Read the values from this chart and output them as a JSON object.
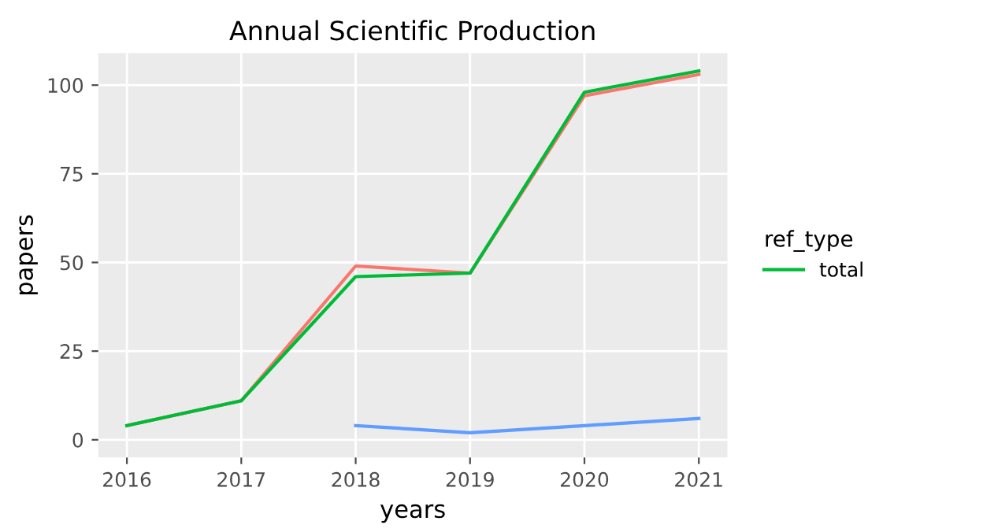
{
  "chart_data": {
    "type": "line",
    "title": "Annual Scientific Production",
    "xlabel": "years",
    "ylabel": "papers",
    "legend_title": "ref_type",
    "series": [
      {
        "color": "#f8766d",
        "x": [
          2016,
          2017,
          2018,
          2019,
          2020,
          2021
        ],
        "values": [
          4,
          11,
          49,
          47,
          97,
          103
        ]
      },
      {
        "name": "total",
        "color": "#00ba38",
        "x": [
          2016,
          2017,
          2018,
          2019,
          2020,
          2021
        ],
        "values": [
          4,
          11,
          46,
          47,
          98,
          104
        ]
      },
      {
        "color": "#619cff",
        "x": [
          2018,
          2019,
          2020,
          2021
        ],
        "values": [
          4,
          2,
          4,
          6
        ]
      }
    ],
    "xlim": [
      2015.75,
      2021.25
    ],
    "xticks": [
      2016,
      2017,
      2018,
      2019,
      2020,
      2021
    ],
    "ylim": [
      -5,
      109
    ],
    "yticks": [
      0,
      25,
      50,
      75,
      100
    ],
    "grid": true,
    "legend": "right",
    "line_style": "solid"
  }
}
